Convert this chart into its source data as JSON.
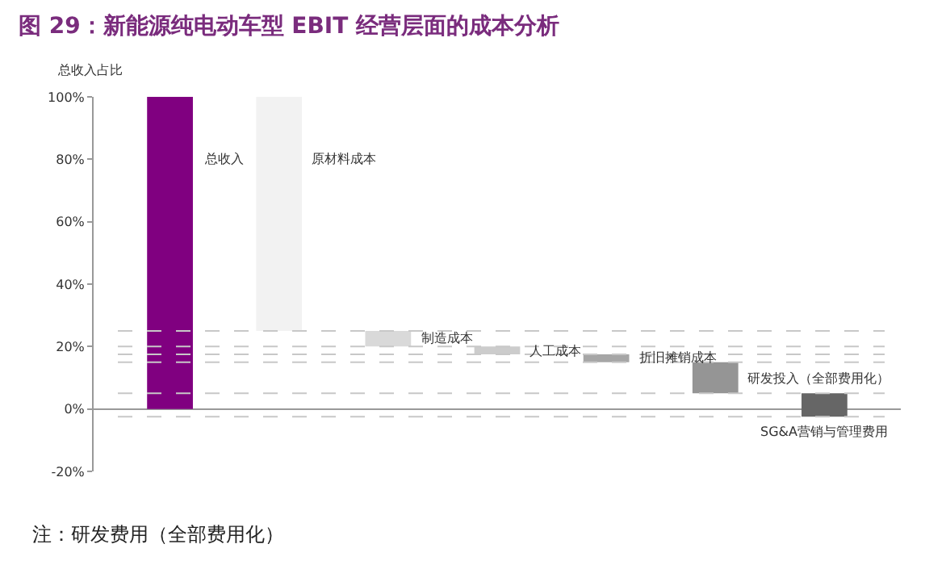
{
  "chart_data": {
    "type": "bar",
    "title": "图 29：新能源纯电动车型 EBIT 经营层面的成本分析",
    "ylabel": "总收入占比",
    "categories": [
      null,
      null,
      null,
      null,
      null,
      null,
      null
    ],
    "values": [
      100,
      75,
      5,
      2.5,
      2.5,
      10,
      7.5
    ],
    "base": [
      0,
      25,
      20,
      17.5,
      15,
      5,
      -2.5
    ],
    "colors": [
      "#800080",
      "#f2f2f2",
      "#d9d9d9",
      "#cccccc",
      "#a6a6a6",
      "#959595",
      "#666666"
    ],
    "ylim": [
      -20,
      100
    ],
    "yticks": [
      {
        "value": -20,
        "label": "-20%"
      },
      {
        "value": 0,
        "label": "0%"
      },
      {
        "value": 20,
        "label": "20%"
      },
      {
        "value": 40,
        "label": "40%"
      },
      {
        "value": 60,
        "label": "60%"
      },
      {
        "value": 80,
        "label": "80%"
      },
      {
        "value": 100,
        "label": "100%"
      }
    ],
    "grid": false,
    "ref_lines": [
      {
        "axis": "y",
        "value": 25,
        "color": "#c8c8c8",
        "line_style": "dashed"
      },
      {
        "axis": "y",
        "value": 20,
        "color": "#c8c8c8",
        "line_style": "dashed"
      },
      {
        "axis": "y",
        "value": 17.5,
        "color": "#c8c8c8",
        "line_style": "dashed"
      },
      {
        "axis": "y",
        "value": 15,
        "color": "#c8c8c8",
        "line_style": "dashed"
      },
      {
        "axis": "y",
        "value": 5,
        "color": "#c8c8c8",
        "line_style": "dashed"
      },
      {
        "axis": "y",
        "value": -2.5,
        "color": "#c8c8c8",
        "line_style": "dashed"
      }
    ],
    "annotations": [
      "总收入",
      "原材料成本",
      "制造成本",
      "人工成本",
      "折旧摊销成本",
      "研发投入（全部费用化）",
      "SG&A营销与管理费用",
      "注：研发费用（全部费用化）"
    ]
  }
}
